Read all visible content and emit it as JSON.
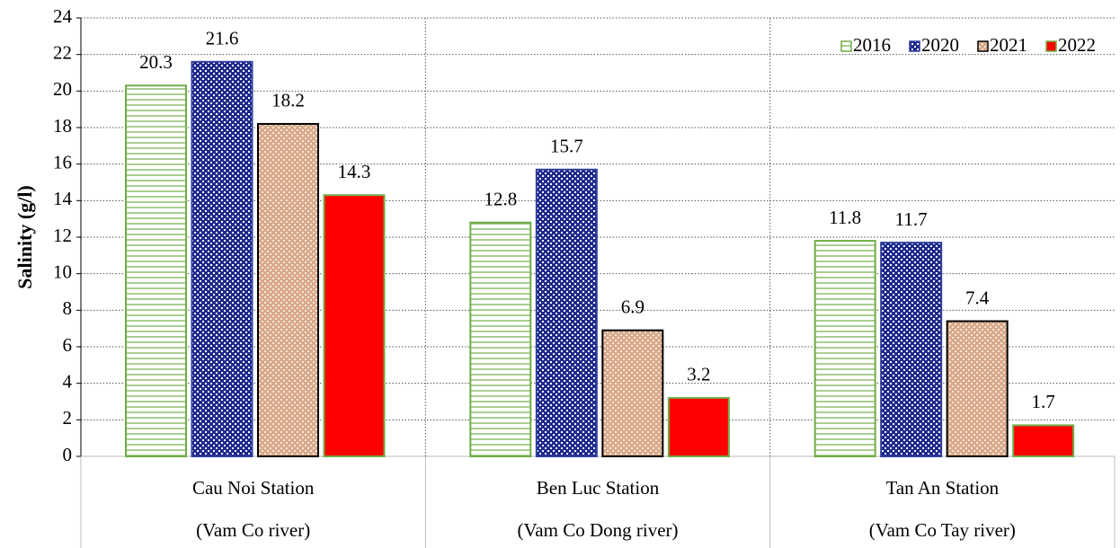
{
  "chart_data": {
    "type": "bar",
    "ylabel": "Salinity (g/l)",
    "categories": [
      [
        "Cau Noi Station",
        "(Vam Co river)"
      ],
      [
        "Ben Luc Station",
        "(Vam Co Dong river)"
      ],
      [
        "Tan An Station",
        "(Vam Co Tay river)"
      ]
    ],
    "series": [
      {
        "name": "2016",
        "color": "#70ad47",
        "fill": "#ffffff",
        "hatch": "hlines",
        "values": [
          20.3,
          12.8,
          11.8
        ]
      },
      {
        "name": "2020",
        "color": "#2f3f9f",
        "fill": "#1f2a8c",
        "hatch": "dots",
        "values": [
          21.6,
          15.7,
          11.7
        ]
      },
      {
        "name": "2021",
        "color": "#000000",
        "fill": "#d9a98a",
        "hatch": "dots",
        "values": [
          18.2,
          6.9,
          7.4
        ]
      },
      {
        "name": "2022",
        "color": "#70ad47",
        "fill": "#ff0000",
        "hatch": "solid",
        "values": [
          14.3,
          3.2,
          1.7
        ]
      }
    ],
    "ylim": [
      0,
      24
    ],
    "yticks": [
      0,
      2,
      4,
      6,
      8,
      10,
      12,
      14,
      16,
      18,
      20,
      22,
      24
    ],
    "grid": true,
    "legend": "upper right"
  }
}
